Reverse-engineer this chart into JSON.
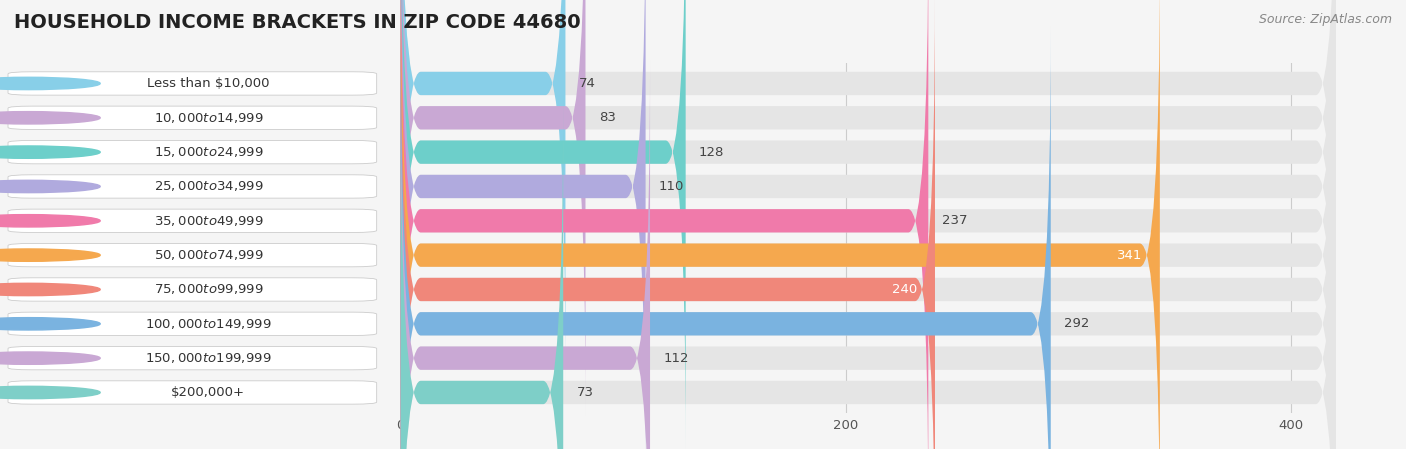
{
  "title": "HOUSEHOLD INCOME BRACKETS IN ZIP CODE 44680",
  "source": "Source: ZipAtlas.com",
  "categories": [
    "Less than $10,000",
    "$10,000 to $14,999",
    "$15,000 to $24,999",
    "$25,000 to $34,999",
    "$35,000 to $49,999",
    "$50,000 to $74,999",
    "$75,000 to $99,999",
    "$100,000 to $149,999",
    "$150,000 to $199,999",
    "$200,000+"
  ],
  "values": [
    74,
    83,
    128,
    110,
    237,
    341,
    240,
    292,
    112,
    73
  ],
  "bar_colors": [
    "#88cfe8",
    "#c9a8d4",
    "#6dcfca",
    "#b0aade",
    "#f07aaa",
    "#f5a84e",
    "#f0877a",
    "#7ab3e0",
    "#c9a8d4",
    "#7ecfc8"
  ],
  "value_inside": [
    false,
    false,
    false,
    false,
    false,
    true,
    true,
    false,
    false,
    false
  ],
  "xlim": [
    0,
    420
  ],
  "xticks": [
    0,
    200,
    400
  ],
  "background_color": "#f5f5f5",
  "bar_bg_color": "#e5e5e5",
  "title_fontsize": 14,
  "label_fontsize": 9.5,
  "value_fontsize": 9.5,
  "source_fontsize": 9,
  "bar_height": 0.68
}
